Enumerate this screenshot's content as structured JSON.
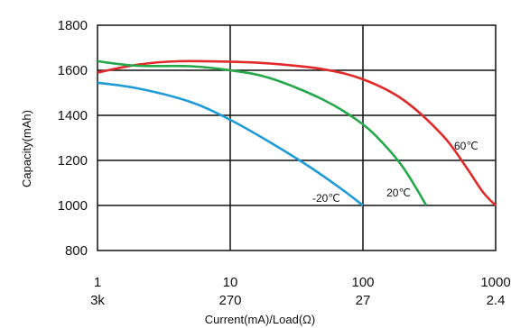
{
  "chart_data": {
    "type": "line",
    "title": "",
    "xlabel": "Current(mA)/Load(Ω)",
    "ylabel": "Capacity(mAh)",
    "x_scale": "log",
    "xlim": [
      1,
      1000
    ],
    "ylim": [
      800,
      1800
    ],
    "x_ticks": [
      {
        "value": 1,
        "label": "1",
        "sublabel": "3k"
      },
      {
        "value": 10,
        "label": "10",
        "sublabel": "270"
      },
      {
        "value": 100,
        "label": "100",
        "sublabel": "27"
      },
      {
        "value": 1000,
        "label": "1000",
        "sublabel": "2.4"
      }
    ],
    "y_ticks": [
      800,
      1000,
      1200,
      1400,
      1600,
      1800
    ],
    "grid": true,
    "series": [
      {
        "name": "60℃",
        "color": "#e02a2a",
        "x": [
          1,
          2,
          4,
          10,
          20,
          50,
          100,
          200,
          400,
          600,
          800,
          1000
        ],
        "y": [
          1590,
          1625,
          1640,
          1638,
          1630,
          1605,
          1560,
          1470,
          1310,
          1170,
          1060,
          1000
        ]
      },
      {
        "name": "20℃",
        "color": "#24a84a",
        "x": [
          1,
          2,
          5,
          10,
          20,
          50,
          100,
          150,
          200,
          250,
          300
        ],
        "y": [
          1640,
          1620,
          1618,
          1600,
          1565,
          1470,
          1360,
          1260,
          1170,
          1080,
          1000
        ]
      },
      {
        "name": "-20℃",
        "color": "#1f9bd8",
        "x": [
          1,
          2,
          5,
          10,
          20,
          40,
          70,
          100
        ],
        "y": [
          1545,
          1520,
          1460,
          1380,
          1280,
          1170,
          1070,
          1000
        ]
      }
    ]
  }
}
